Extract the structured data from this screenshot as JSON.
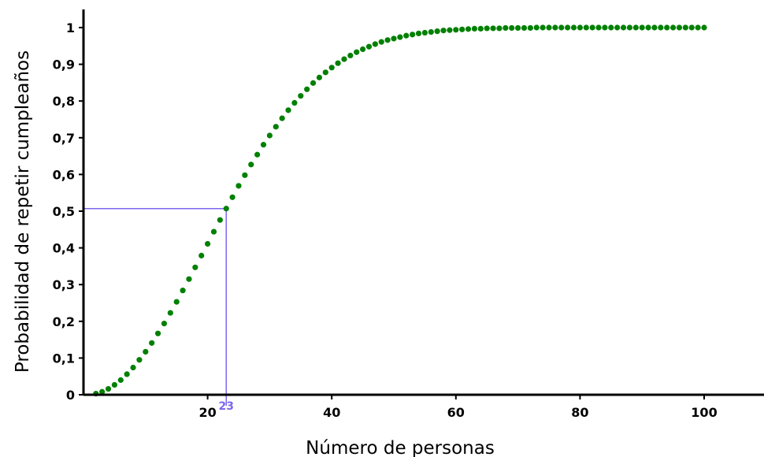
{
  "chart_data": {
    "type": "scatter",
    "title": "",
    "xlabel": "Número de personas",
    "ylabel": "Probabilidad de repetir cumpleaños",
    "xlim": [
      0,
      110
    ],
    "ylim": [
      0,
      1.05
    ],
    "x_ticks": [
      {
        "value": 20,
        "label": "20"
      },
      {
        "value": 40,
        "label": "40"
      },
      {
        "value": 60,
        "label": "60"
      },
      {
        "value": 80,
        "label": "80"
      },
      {
        "value": 100,
        "label": "100"
      }
    ],
    "y_ticks": [
      {
        "value": 0,
        "label": "0"
      },
      {
        "value": 0.1,
        "label": "0,1"
      },
      {
        "value": 0.2,
        "label": "0,2"
      },
      {
        "value": 0.3,
        "label": "0,3"
      },
      {
        "value": 0.4,
        "label": "0,4"
      },
      {
        "value": 0.5,
        "label": "0,5"
      },
      {
        "value": 0.6,
        "label": "0,6"
      },
      {
        "value": 0.7,
        "label": "0,7"
      },
      {
        "value": 0.8,
        "label": "0,8"
      },
      {
        "value": 0.9,
        "label": "0,9"
      },
      {
        "value": 1,
        "label": "1"
      }
    ],
    "grid": false,
    "series": [
      {
        "color": "#008000",
        "x_start": 2,
        "x_end": 100,
        "x_step": 1,
        "y": [
          0.003,
          0.008,
          0.016,
          0.027,
          0.04,
          0.056,
          0.074,
          0.095,
          0.117,
          0.141,
          0.167,
          0.194,
          0.223,
          0.253,
          0.284,
          0.315,
          0.347,
          0.379,
          0.411,
          0.444,
          0.476,
          0.507,
          0.538,
          0.569,
          0.598,
          0.627,
          0.654,
          0.681,
          0.706,
          0.73,
          0.753,
          0.775,
          0.795,
          0.814,
          0.832,
          0.849,
          0.864,
          0.878,
          0.891,
          0.903,
          0.914,
          0.924,
          0.933,
          0.941,
          0.948,
          0.955,
          0.961,
          0.966,
          0.97,
          0.974,
          0.978,
          0.981,
          0.984,
          0.986,
          0.988,
          0.99,
          0.992,
          0.993,
          0.994,
          0.995,
          0.996,
          0.997,
          0.997,
          0.998,
          0.998,
          0.998,
          0.999,
          0.999,
          0.999,
          0.999,
          0.999,
          1.0,
          1.0,
          1.0,
          1.0,
          1.0,
          1.0,
          1.0,
          1.0,
          1.0,
          1.0,
          1.0,
          1.0,
          1.0,
          1.0,
          1.0,
          1.0,
          1.0,
          1.0,
          1.0,
          1.0,
          1.0,
          1.0,
          1.0,
          1.0,
          1.0,
          1.0,
          1.0,
          1.0
        ]
      }
    ],
    "annotation": {
      "x": 23,
      "y": 0.507,
      "label": "23",
      "color": "#7b68ee"
    }
  }
}
